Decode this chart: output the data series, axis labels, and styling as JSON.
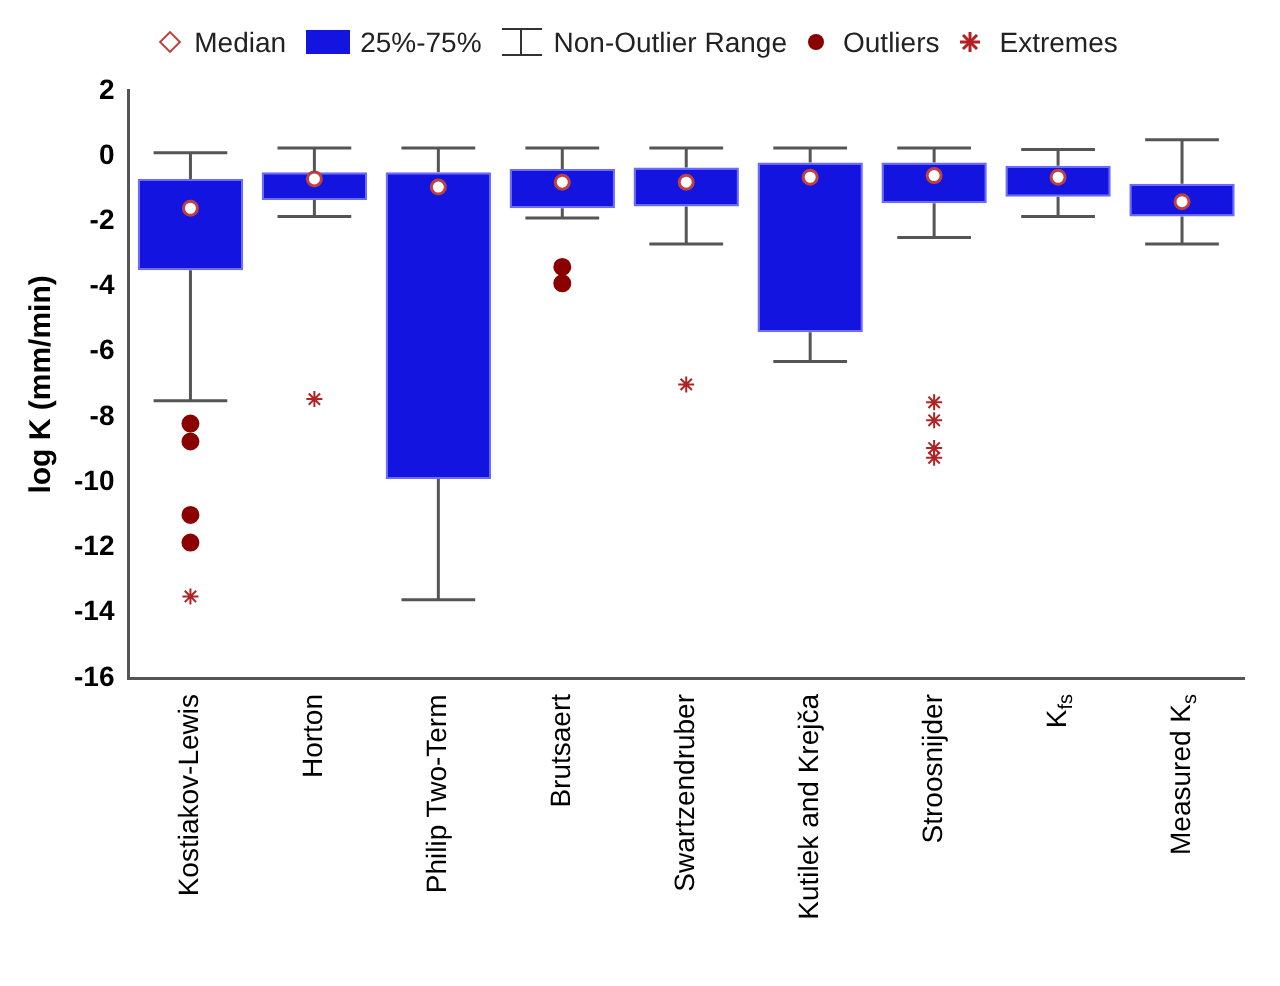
{
  "chart_data": {
    "type": "box",
    "ylabel": "log K (mm/min)",
    "categories": [
      "Kostiakov-Lewis",
      "Horton",
      "Philip Two-Term",
      "Brutsaert",
      "Swartzendruber",
      "Kutilek and Krejča",
      "Stroosnijder",
      "K$_{fs}$",
      "Measured K$_{s}$"
    ],
    "ylim": [
      -16,
      2
    ],
    "yticks": [
      -16,
      -14,
      -12,
      -10,
      -8,
      -6,
      -4,
      -2,
      0,
      2
    ],
    "grid": false,
    "legend": "top",
    "annotations": [
      "Median",
      "Non-Outlier Range"
    ],
    "series": [
      {
        "type": "box",
        "name": "25%-75%",
        "color": "#1414e0",
        "boxes": [
          {
            "low": -7.5,
            "q1": -3.5,
            "median": -1.6,
            "q3": -0.7,
            "high": 0.1
          },
          {
            "low": -1.85,
            "q1": -1.35,
            "median": -0.7,
            "q3": -0.5,
            "high": 0.25
          },
          {
            "low": -13.6,
            "q1": -9.9,
            "median": -0.95,
            "q3": -0.5,
            "high": 0.25
          },
          {
            "low": -1.9,
            "q1": -1.6,
            "median": -0.8,
            "q3": -0.4,
            "high": 0.25
          },
          {
            "low": -2.7,
            "q1": -1.55,
            "median": -0.8,
            "q3": -0.35,
            "high": 0.25
          },
          {
            "low": -6.3,
            "q1": -5.4,
            "median": -0.65,
            "q3": -0.2,
            "high": 0.25
          },
          {
            "low": -2.5,
            "q1": -1.45,
            "median": -0.6,
            "q3": -0.2,
            "high": 0.25
          },
          {
            "low": -1.85,
            "q1": -1.25,
            "median": -0.65,
            "q3": -0.3,
            "high": 0.2
          },
          {
            "low": -2.7,
            "q1": -1.85,
            "median": -1.4,
            "q3": -0.85,
            "high": 0.5
          }
        ]
      },
      {
        "type": "scatter",
        "name": "Outliers",
        "color": "#8b0000",
        "x": [
          "Kostiakov-Lewis",
          "Kostiakov-Lewis",
          "Kostiakov-Lewis",
          "Kostiakov-Lewis",
          "Brutsaert",
          "Brutsaert"
        ],
        "values": [
          -8.2,
          -8.75,
          -11.0,
          -11.85,
          -3.4,
          -3.9
        ]
      },
      {
        "type": "scatter",
        "name": "Extremes",
        "color": "#b22222",
        "x": [
          "Kostiakov-Lewis",
          "Horton",
          "Swartzendruber",
          "Stroosnijder",
          "Stroosnijder",
          "Stroosnijder",
          "Stroosnijder"
        ],
        "values": [
          -13.5,
          -7.45,
          -7.0,
          -7.55,
          -8.1,
          -8.95,
          -9.25
        ]
      }
    ]
  }
}
